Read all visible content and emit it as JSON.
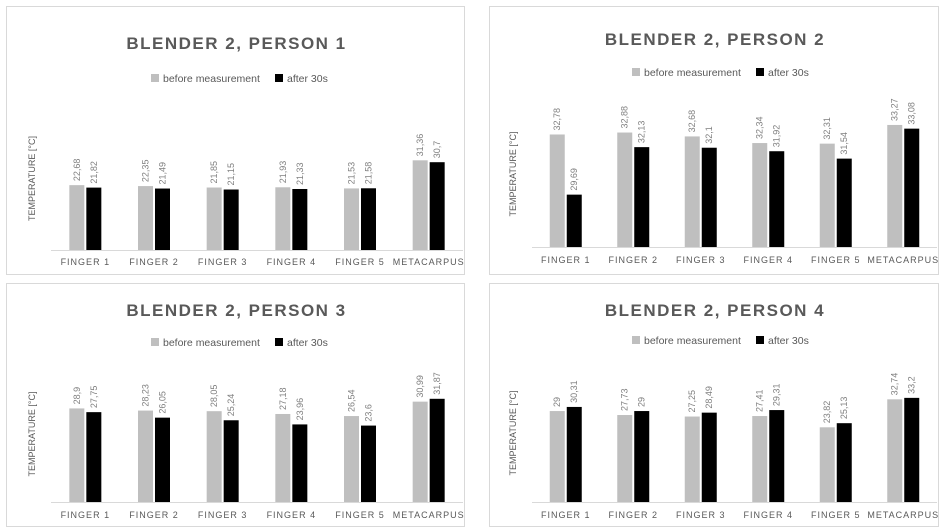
{
  "chart_data": [
    {
      "type": "bar",
      "title": "BLENDER 2, PERSON 1",
      "ylabel": "TEMPERATURE [°C]",
      "categories": [
        "FINGER 1",
        "FINGER 2",
        "FINGER 3",
        "FINGER 4",
        "FINGER 5",
        "METACARPUS"
      ],
      "series": [
        {
          "name": "before measurement",
          "color": "#bfbfbf",
          "values": [
            22.68,
            22.35,
            21.85,
            21.93,
            21.53,
            31.36
          ],
          "labels": [
            "22,68",
            "22,35",
            "21,85",
            "21,93",
            "21,53",
            "31,36"
          ]
        },
        {
          "name": "after 30s",
          "color": "#000000",
          "values": [
            21.82,
            21.49,
            21.15,
            21.33,
            21.58,
            30.7
          ],
          "labels": [
            "21,82",
            "21,49",
            "21,15",
            "21,33",
            "21,58",
            "30,7"
          ]
        }
      ],
      "ylim": [
        0,
        50
      ],
      "grid": false,
      "legend_position": "top"
    },
    {
      "type": "bar",
      "title": "BLENDER 2, PERSON 2",
      "ylabel": "TEMPERATURE [°C]",
      "categories": [
        "FINGER 1",
        "FINGER 2",
        "FINGER 3",
        "FINGER 4",
        "FINGER 5",
        "METACARPUS"
      ],
      "series": [
        {
          "name": "before measurement",
          "color": "#bfbfbf",
          "values": [
            32.78,
            32.88,
            32.68,
            32.34,
            32.31,
            33.27
          ],
          "labels": [
            "32,78",
            "32,88",
            "32,68",
            "32,34",
            "32,31",
            "33,27"
          ]
        },
        {
          "name": "after 30s",
          "color": "#000000",
          "values": [
            29.69,
            32.13,
            32.1,
            31.92,
            31.54,
            33.08
          ],
          "labels": [
            "29,69",
            "32,13",
            "32,1",
            "31,92",
            "31,54",
            "33,08"
          ]
        }
      ],
      "ylim": [
        27,
        34.5
      ],
      "grid": false,
      "legend_position": "top"
    },
    {
      "type": "bar",
      "title": "BLENDER 2, PERSON 3",
      "ylabel": "TEMPERATURE [°C]",
      "categories": [
        "FINGER 1",
        "FINGER 2",
        "FINGER 3",
        "FINGER 4",
        "FINGER 5",
        "METACARPUS"
      ],
      "series": [
        {
          "name": "before measurement",
          "color": "#bfbfbf",
          "values": [
            28.9,
            28.23,
            28.05,
            27.18,
            26.54,
            30.99
          ],
          "labels": [
            "28,9",
            "28,23",
            "28,05",
            "27,18",
            "26,54",
            "30,99"
          ]
        },
        {
          "name": "after 30s",
          "color": "#000000",
          "values": [
            27.75,
            26.05,
            25.24,
            23.96,
            23.6,
            31.87
          ],
          "labels": [
            "27,75",
            "26,05",
            "25,24",
            "23,96",
            "23,6",
            "31,87"
          ]
        }
      ],
      "ylim": [
        0,
        42
      ],
      "grid": false,
      "legend_position": "top"
    },
    {
      "type": "bar",
      "title": "BLENDER 2, PERSON 4",
      "ylabel": "TEMPERATURE [°C]",
      "categories": [
        "FINGER 1",
        "FINGER 2",
        "FINGER 3",
        "FINGER 4",
        "FINGER 5",
        "METACARPUS"
      ],
      "series": [
        {
          "name": "before measurement",
          "color": "#bfbfbf",
          "values": [
            29,
            27.73,
            27.25,
            27.41,
            23.82,
            32.74
          ],
          "labels": [
            "29",
            "27,73",
            "27,25",
            "27,41",
            "23,82",
            "32,74"
          ]
        },
        {
          "name": "after 30s",
          "color": "#000000",
          "values": [
            30.31,
            29,
            28.49,
            29.31,
            25.13,
            33.2
          ],
          "labels": [
            "30,31",
            "29",
            "28,49",
            "29,31",
            "25,13",
            "33,2"
          ]
        }
      ],
      "ylim": [
        0,
        44
      ],
      "grid": false,
      "legend_position": "top"
    }
  ]
}
